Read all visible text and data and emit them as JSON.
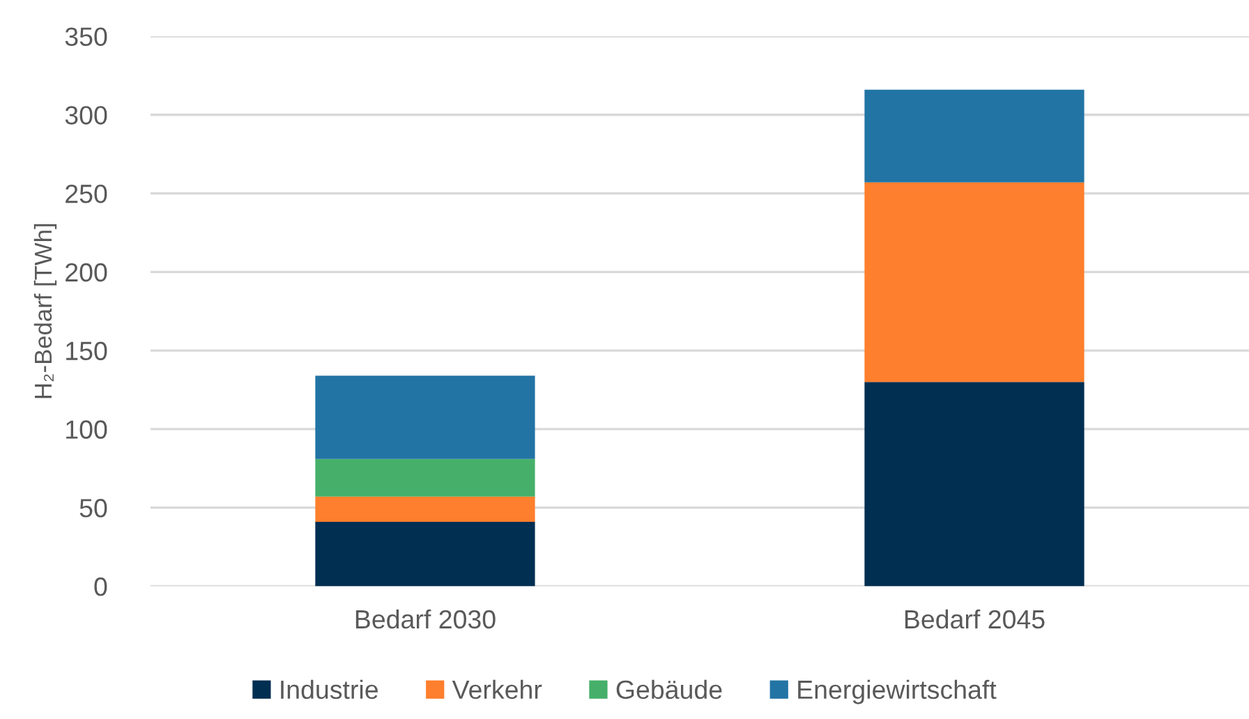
{
  "chart_data": {
    "type": "bar",
    "stacked": true,
    "categories": [
      "Bedarf 2030",
      "Bedarf 2045"
    ],
    "series": [
      {
        "name": "Industrie",
        "color": "#002f52",
        "values": [
          41,
          130
        ]
      },
      {
        "name": "Verkehr",
        "color": "#fe7f2d",
        "values": [
          16,
          127
        ]
      },
      {
        "name": "Gebäude",
        "color": "#46b06a",
        "values": [
          24,
          null
        ]
      },
      {
        "name": "Energiewirtschaft",
        "color": "#2274a5",
        "values": [
          53,
          59
        ]
      }
    ],
    "ylabel": "H₂-Bedarf [TWh]",
    "ylim": [
      0,
      350
    ],
    "yticks": [
      0,
      50,
      100,
      150,
      200,
      250,
      300,
      350
    ],
    "grid": "y",
    "legend": "bottom"
  }
}
